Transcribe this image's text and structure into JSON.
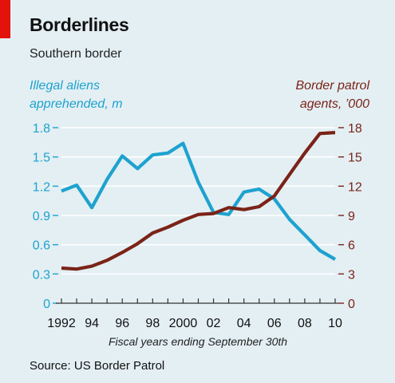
{
  "header": {
    "title": "Borderlines",
    "subtitle": "Southern border"
  },
  "source": "Source: US Border Patrol",
  "chart_data": {
    "type": "line",
    "title": "Borderlines",
    "subtitle": "Southern border",
    "xlabel": "Fiscal years ending September 30th",
    "x": [
      1992,
      1993,
      1994,
      1995,
      1996,
      1997,
      1998,
      1999,
      2000,
      2001,
      2002,
      2003,
      2004,
      2005,
      2006,
      2007,
      2008,
      2009,
      2010
    ],
    "x_tick_labels": [
      "1992",
      "94",
      "96",
      "98",
      "2000",
      "02",
      "04",
      "06",
      "08",
      "10"
    ],
    "x_tick_values": [
      1992,
      1994,
      1996,
      1998,
      2000,
      2002,
      2004,
      2006,
      2008,
      2010
    ],
    "y_left": {
      "label": "Illegal aliens\napprehended, m",
      "ticks": [
        "0",
        "0.3",
        "0.6",
        "0.9",
        "1.2",
        "1.5",
        "1.8"
      ],
      "range": [
        0,
        1.8
      ],
      "color": "#1ea2cf"
    },
    "y_right": {
      "label": "Border patrol\nagents, ’000",
      "ticks": [
        "0",
        "3",
        "6",
        "9",
        "12",
        "15",
        "18"
      ],
      "range": [
        0,
        18
      ],
      "color": "#7b2318"
    },
    "series": [
      {
        "axis": "left",
        "color": "#1ea2cf",
        "values": [
          1.15,
          1.21,
          0.98,
          1.27,
          1.51,
          1.38,
          1.52,
          1.54,
          1.64,
          1.24,
          0.93,
          0.91,
          1.14,
          1.17,
          1.07,
          0.86,
          0.7,
          0.54,
          0.45
        ]
      },
      {
        "axis": "right",
        "color": "#7b2318",
        "values": [
          3.6,
          3.5,
          3.8,
          4.4,
          5.2,
          6.1,
          7.2,
          7.8,
          8.5,
          9.1,
          9.2,
          9.8,
          9.6,
          9.9,
          11.0,
          13.2,
          15.4,
          17.4,
          17.5
        ]
      }
    ]
  }
}
